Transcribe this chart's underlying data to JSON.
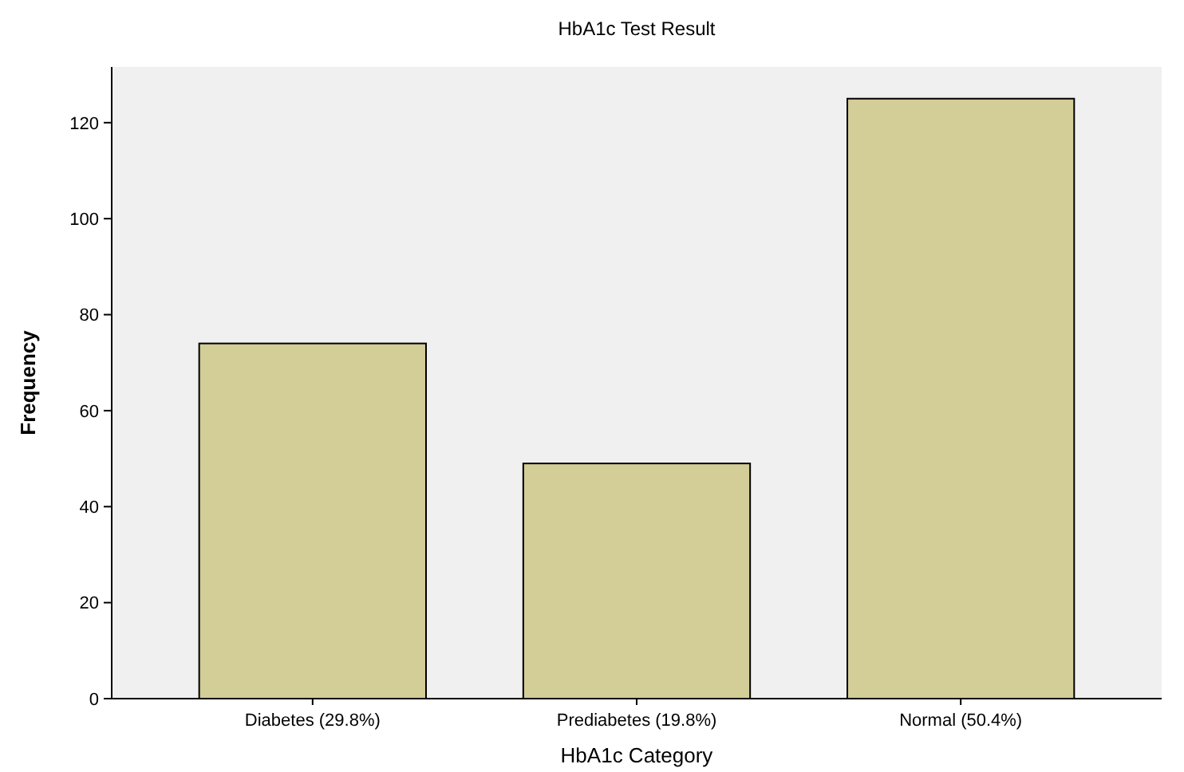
{
  "chart_data": {
    "type": "bar",
    "title": "HbA1c Test Result",
    "xlabel": "HbA1c Category",
    "ylabel": "Frequency",
    "categories": [
      "Diabetes (29.8%)",
      "Prediabetes (19.8%)",
      "Normal (50.4%)"
    ],
    "values": [
      74,
      49,
      125
    ],
    "color": "#d3cd97",
    "ylim": [
      0,
      131.6
    ],
    "yticks": [
      0,
      20,
      40,
      60,
      80,
      100,
      120
    ],
    "grid": false
  }
}
